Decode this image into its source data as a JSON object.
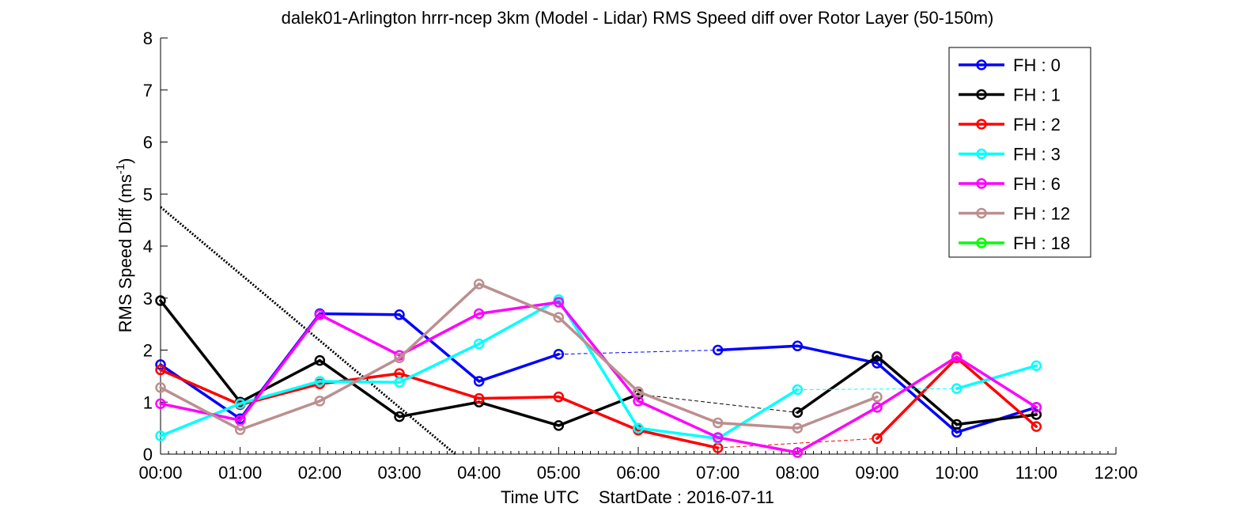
{
  "chart_data": {
    "type": "line",
    "title": "dalek01-Arlington hrrr-ncep 3km (Model - Lidar) RMS Speed diff over Rotor Layer (50-150m)",
    "xlabel": "Time UTC    StartDate : 2016-07-11",
    "ylabel_main": "RMS Speed Diff (ms",
    "ylabel_sup": "-1",
    "ylabel_tail": ")",
    "xlim": [
      0,
      12
    ],
    "ylim": [
      0,
      8
    ],
    "x_ticks": [
      0,
      1,
      2,
      3,
      4,
      5,
      6,
      7,
      8,
      9,
      10,
      11,
      12
    ],
    "x_tick_labels": [
      "00:00",
      "01:00",
      "02:00",
      "03:00",
      "04:00",
      "05:00",
      "06:00",
      "07:00",
      "08:00",
      "09:00",
      "10:00",
      "11:00",
      "12:00"
    ],
    "y_ticks": [
      0,
      1,
      2,
      3,
      4,
      5,
      6,
      7,
      8
    ],
    "y_tick_labels": [
      "0",
      "1",
      "2",
      "3",
      "4",
      "5",
      "6",
      "7",
      "8"
    ],
    "legend_position": "top-right",
    "series": [
      {
        "name": "FH : 0",
        "color": "#0000ff",
        "points": [
          [
            0,
            1.72
          ],
          [
            1,
            0.68
          ],
          [
            2,
            2.7
          ],
          [
            3,
            2.68
          ],
          [
            4,
            1.4
          ],
          [
            5,
            1.92
          ],
          [
            7,
            2.0
          ],
          [
            8,
            2.08
          ],
          [
            9,
            1.75
          ],
          [
            10,
            0.42
          ],
          [
            11,
            0.9
          ]
        ]
      },
      {
        "name": "FH : 1",
        "color": "#000000",
        "points": [
          [
            0,
            2.95
          ],
          [
            1,
            1.0
          ],
          [
            2,
            1.8
          ],
          [
            3,
            0.72
          ],
          [
            4,
            1.0
          ],
          [
            5,
            0.55
          ],
          [
            6,
            1.15
          ],
          [
            8,
            0.8
          ],
          [
            9,
            1.88
          ],
          [
            10,
            0.57
          ],
          [
            11,
            0.76
          ]
        ]
      },
      {
        "name": "FH : 2",
        "color": "#ff0000",
        "points": [
          [
            0,
            1.62
          ],
          [
            1,
            0.95
          ],
          [
            2,
            1.35
          ],
          [
            3,
            1.55
          ],
          [
            4,
            1.07
          ],
          [
            5,
            1.1
          ],
          [
            6,
            0.46
          ],
          [
            7,
            0.12
          ],
          [
            9,
            0.3
          ],
          [
            10,
            1.85
          ],
          [
            11,
            0.53
          ]
        ]
      },
      {
        "name": "FH : 3",
        "color": "#00ffff",
        "points": [
          [
            0,
            0.35
          ],
          [
            1,
            0.97
          ],
          [
            2,
            1.4
          ],
          [
            3,
            1.38
          ],
          [
            4,
            2.12
          ],
          [
            5,
            2.97
          ],
          [
            6,
            0.5
          ],
          [
            7,
            0.3
          ],
          [
            8,
            1.24
          ],
          [
            10,
            1.26
          ],
          [
            11,
            1.7
          ]
        ]
      },
      {
        "name": "FH : 6",
        "color": "#ff00ff",
        "points": [
          [
            0,
            0.97
          ],
          [
            1,
            0.65
          ],
          [
            2,
            2.68
          ],
          [
            3,
            1.9
          ],
          [
            4,
            2.7
          ],
          [
            5,
            2.92
          ],
          [
            6,
            1.02
          ],
          [
            7,
            0.32
          ],
          [
            8,
            0.03
          ],
          [
            9,
            0.9
          ],
          [
            10,
            1.87
          ],
          [
            11,
            0.9
          ]
        ]
      },
      {
        "name": "FH : 12",
        "color": "#bc8f8f",
        "points": [
          [
            0,
            1.28
          ],
          [
            1,
            0.47
          ],
          [
            2,
            1.02
          ],
          [
            3,
            1.85
          ],
          [
            4,
            3.27
          ],
          [
            5,
            2.63
          ],
          [
            6,
            1.2
          ],
          [
            7,
            0.6
          ],
          [
            8,
            0.5
          ],
          [
            9,
            1.1
          ]
        ]
      },
      {
        "name": "FH : 18",
        "color": "#00ff00",
        "points": []
      }
    ],
    "dotted_line": {
      "color": "#000000",
      "points": [
        [
          0,
          4.75
        ],
        [
          3.7,
          0
        ]
      ]
    }
  }
}
